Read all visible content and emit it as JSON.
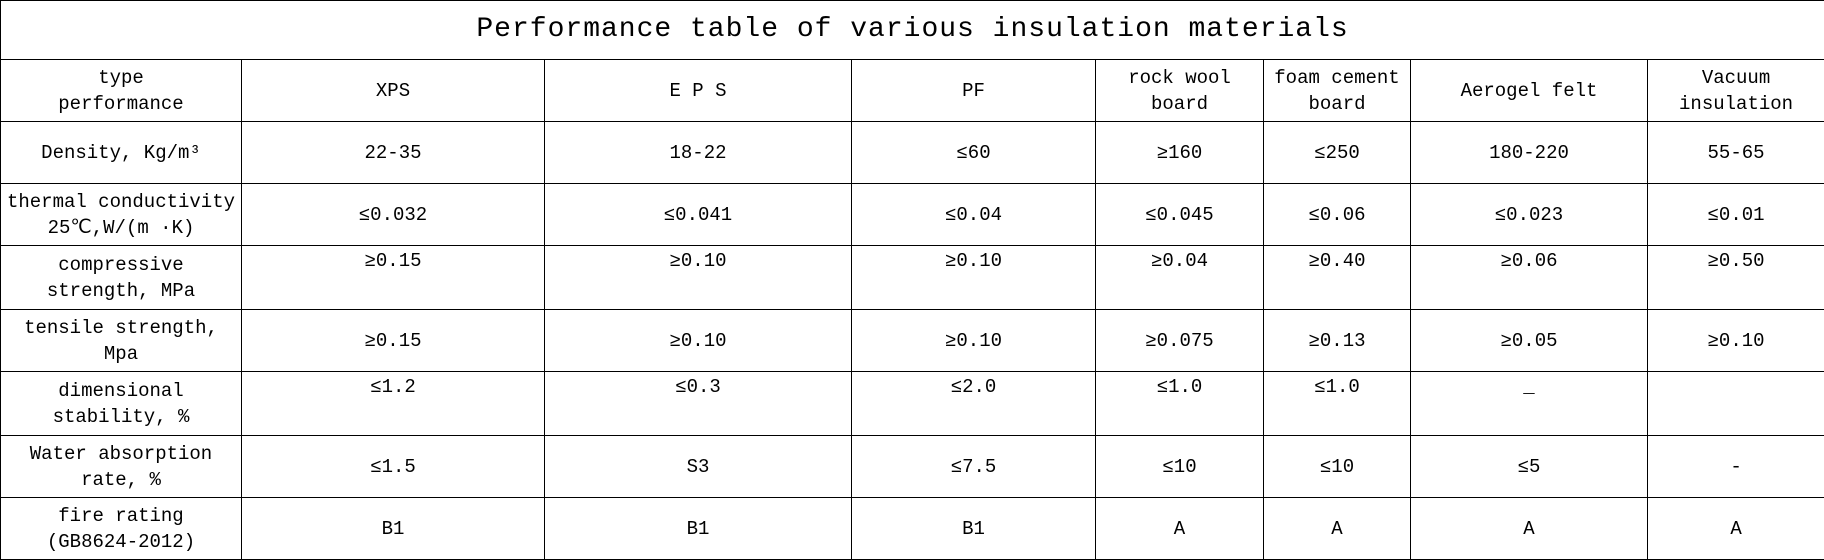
{
  "title": "Performance table of various insulation materials",
  "table": {
    "header": [
      "type\nperformance",
      "XPS",
      "E P S",
      "PF",
      "rock wool\nboard",
      "foam cement\nboard",
      "Aerogel felt",
      "Vacuum\ninsulation"
    ],
    "rows": [
      [
        "Density, Kg/m³",
        "22-35",
        "18-22",
        "≤60",
        "≥160",
        "≤250",
        "180-220",
        "55-65"
      ],
      [
        "thermal conductivity\n25℃,W/(m ·K)",
        "≤0.032",
        "≤0.041",
        "≤0.04",
        "≤0.045",
        "≤0.06",
        "≤0.023",
        "≤0.01"
      ],
      [
        "compressive\nstrength, MPa",
        "≥0.15",
        "≥0.10",
        "≥0.10",
        "≥0.04",
        "≥0.40",
        "≥0.06",
        "≥0.50"
      ],
      [
        "tensile strength, Mpa",
        "≥0.15",
        "≥0.10",
        "≥0.10",
        "≥0.075",
        "≥0.13",
        "≥0.05",
        "≥0.10"
      ],
      [
        "dimensional\nstability, %",
        "≤1.2",
        "≤0.3",
        "≤2.0",
        "≤1.0",
        "≤1.0",
        "_",
        null
      ],
      [
        "Water absorption\nrate, %",
        "≤1.5",
        "S3",
        "≤7.5",
        "≤10",
        "≤10",
        "≤5",
        "-"
      ],
      [
        "fire rating\n(GB8624-2012)",
        "B1",
        "B1",
        "B1",
        "A",
        "A",
        "A",
        "A"
      ]
    ]
  }
}
